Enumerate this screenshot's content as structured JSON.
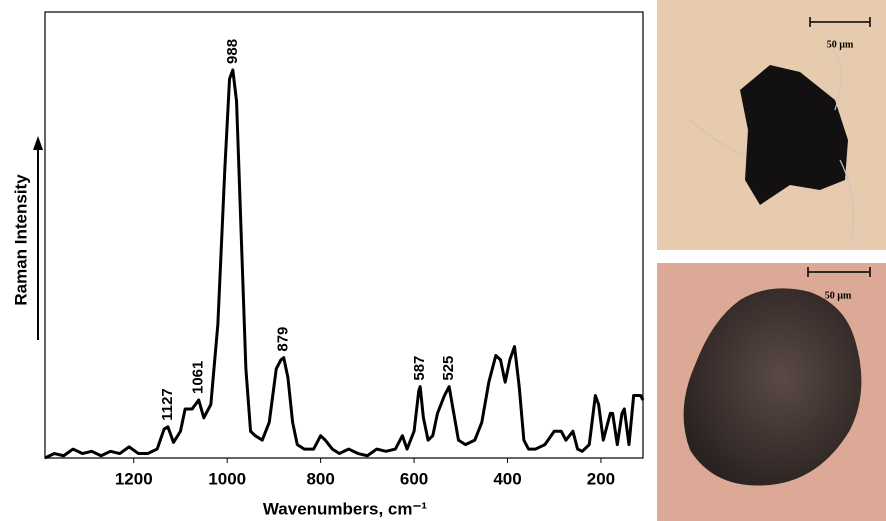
{
  "chart_data": {
    "type": "line",
    "xlabel": "Wavenumbers, cm⁻¹",
    "ylabel": "Raman Intensity",
    "color": "#000000",
    "xlim": [
      1390,
      110
    ],
    "ylim": [
      0,
      100
    ],
    "xticks": [
      1200,
      1000,
      800,
      600,
      400,
      200
    ],
    "peak_labels": [
      1127,
      1061,
      988,
      879,
      587,
      525
    ],
    "x": [
      1390,
      1370,
      1350,
      1330,
      1310,
      1290,
      1270,
      1250,
      1230,
      1210,
      1190,
      1170,
      1150,
      1135,
      1127,
      1115,
      1100,
      1090,
      1075,
      1061,
      1050,
      1035,
      1020,
      1005,
      995,
      988,
      980,
      970,
      960,
      950,
      940,
      925,
      910,
      895,
      885,
      879,
      870,
      860,
      850,
      835,
      815,
      800,
      790,
      775,
      760,
      740,
      720,
      700,
      680,
      660,
      640,
      625,
      615,
      600,
      590,
      587,
      580,
      570,
      560,
      550,
      535,
      525,
      515,
      505,
      490,
      470,
      455,
      440,
      425,
      415,
      405,
      395,
      385,
      375,
      365,
      355,
      340,
      320,
      300,
      285,
      275,
      260,
      250,
      240,
      225,
      212,
      205,
      195,
      180,
      175,
      165,
      155,
      150,
      140,
      130,
      115,
      110
    ],
    "values": [
      0,
      1,
      0.5,
      2,
      1,
      1.5,
      0.5,
      1.5,
      1,
      2.5,
      1,
      1,
      2,
      6.5,
      7,
      3.5,
      6,
      11,
      11,
      13,
      9,
      12,
      30,
      65,
      85,
      87,
      80,
      50,
      20,
      6,
      5,
      4,
      8,
      20,
      22,
      22.5,
      18,
      8,
      3,
      2,
      2,
      5,
      4,
      2,
      1,
      2,
      1,
      0.5,
      2,
      1.5,
      2,
      5,
      2,
      6,
      15,
      16,
      9,
      4,
      5,
      10,
      14,
      16,
      10,
      4,
      3,
      4,
      8,
      17,
      23,
      22,
      17,
      22,
      25,
      16,
      4,
      2,
      2,
      3,
      6,
      6,
      4,
      6,
      2,
      1.5,
      3,
      14,
      12,
      4,
      10,
      10,
      3,
      10,
      11,
      3,
      14,
      14,
      13
    ]
  },
  "images": [
    {
      "scale_label": "50 µm"
    },
    {
      "scale_label": "50 µm"
    }
  ]
}
